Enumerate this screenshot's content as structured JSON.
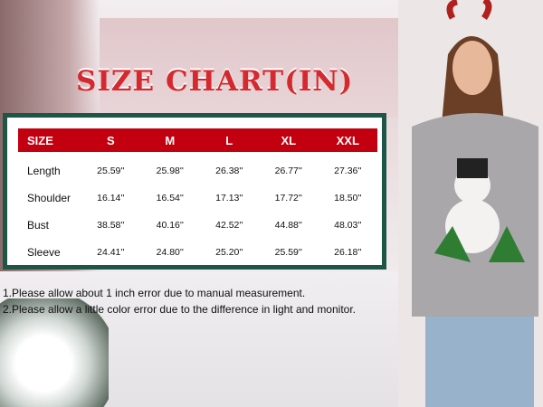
{
  "title": "SIZE CHART(IN)",
  "table": {
    "headers": [
      "SIZE",
      "S",
      "M",
      "L",
      "XL",
      "XXL"
    ],
    "rows": [
      [
        "Length",
        "25.59''",
        "25.98''",
        "26.38''",
        "26.77''",
        "27.36''"
      ],
      [
        "Shoulder",
        "16.14''",
        "16.54''",
        "17.13''",
        "17.72''",
        "18.50''"
      ],
      [
        "Bust",
        "38.58''",
        "40.16''",
        "42.52''",
        "44.88''",
        "48.03''"
      ],
      [
        "Sleeve",
        "24.41''",
        "24.80''",
        "25.20''",
        "25.59''",
        "26.18''"
      ]
    ]
  },
  "notes": [
    "1.Please allow about 1 inch error due to manual measurement.",
    "2.Please allow a little color error due to the difference in light and monitor."
  ],
  "colors": {
    "header_red": "#c3000f",
    "border_green": "#1d5547",
    "title_red": "#d42a2f"
  }
}
